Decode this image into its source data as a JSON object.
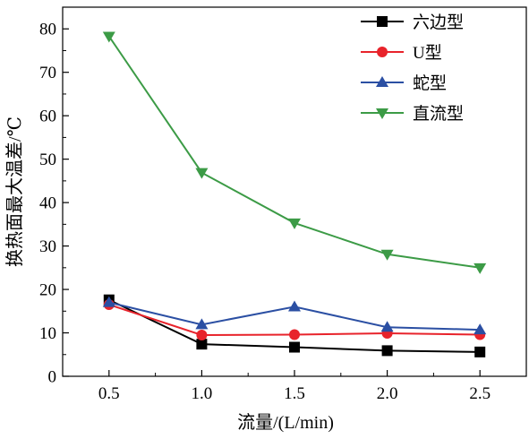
{
  "chart_data": {
    "type": "line",
    "title": "",
    "xlabel": "流量/(L/min)",
    "ylabel": "换热面最大温差/℃",
    "x": [
      0.5,
      1.0,
      1.5,
      2.0,
      2.5
    ],
    "x_tick_labels": [
      "0.5",
      "1.0",
      "1.5",
      "2.0",
      "2.5"
    ],
    "xlim": [
      0.25,
      2.75
    ],
    "ylim": [
      0,
      85
    ],
    "y_ticks": [
      0,
      10,
      20,
      30,
      40,
      50,
      60,
      70,
      80
    ],
    "grid": false,
    "legend_position": "top-right",
    "series": [
      {
        "name": "六边型",
        "values": [
          17.6,
          7.4,
          6.7,
          5.9,
          5.6
        ],
        "color": "#000000",
        "marker": "square"
      },
      {
        "name": "U型",
        "values": [
          16.5,
          9.5,
          9.6,
          9.9,
          9.6
        ],
        "color": "#e8232b",
        "marker": "circle"
      },
      {
        "name": "蛇型",
        "values": [
          17.0,
          11.9,
          16.0,
          11.3,
          10.7
        ],
        "color": "#2b4fa3",
        "marker": "triangle-up"
      },
      {
        "name": "直流型",
        "values": [
          78.3,
          46.9,
          35.3,
          28.1,
          25.0
        ],
        "color": "#3c9b46",
        "marker": "triangle-down"
      }
    ]
  }
}
